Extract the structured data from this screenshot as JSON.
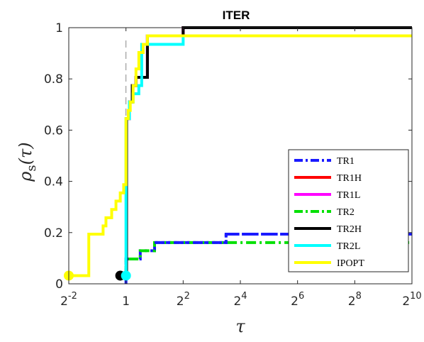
{
  "chart_data": {
    "type": "line",
    "title": "ITER",
    "xlabel": "τ",
    "ylabel": "ρs(τ)",
    "xscale": "log2",
    "xlim_log2": [
      -2,
      10
    ],
    "ylim": [
      0,
      1
    ],
    "x_tick_labels": [
      {
        "base": "2",
        "exp": "-2",
        "log2": -2
      },
      {
        "base": "1",
        "exp": "",
        "log2": 0
      },
      {
        "base": "2",
        "exp": "2",
        "log2": 2
      },
      {
        "base": "2",
        "exp": "4",
        "log2": 4
      },
      {
        "base": "2",
        "exp": "6",
        "log2": 6
      },
      {
        "base": "2",
        "exp": "8",
        "log2": 8
      },
      {
        "base": "2",
        "exp": "10",
        "log2": 10
      }
    ],
    "y_ticks": [
      0,
      0.2,
      0.4,
      0.6,
      0.8,
      1
    ],
    "y_tick_labels": [
      "0",
      "0.2",
      "0.4",
      "0.6",
      "0.8",
      "1"
    ],
    "reference_line_log2": 0,
    "grid": false,
    "legend_position": "lower-right",
    "series": [
      {
        "name": "TR1",
        "color": "#1a1aff",
        "dash": "dashdot",
        "steps": [
          [
            0,
            0.032
          ],
          [
            0.02,
            0.645
          ],
          [
            0.1,
            0.71
          ],
          [
            0.2,
            0.77
          ],
          [
            0.35,
            0.806
          ],
          [
            0.55,
            0.806
          ],
          [
            0.75,
            0.935
          ],
          [
            1.0,
            0.935
          ],
          [
            2.2,
            0.935
          ],
          [
            2.5,
            0.935
          ],
          [
            10,
            0.935
          ]
        ],
        "low_steps": [
          [
            0,
            0
          ],
          [
            0,
            0.097
          ],
          [
            0.5,
            0.129
          ],
          [
            1.0,
            0.161
          ],
          [
            3.5,
            0.194
          ],
          [
            10,
            0.194
          ]
        ],
        "marker": null
      },
      {
        "name": "TR1H",
        "color": "#ff0000",
        "dash": "solid",
        "steps": [
          [
            0,
            0.032
          ],
          [
            0.02,
            0.645
          ],
          [
            0.12,
            0.71
          ],
          [
            0.22,
            0.774
          ],
          [
            0.35,
            0.806
          ],
          [
            0.55,
            0.806
          ],
          [
            0.75,
            0.968
          ],
          [
            2.0,
            1.0
          ],
          [
            10,
            1.0
          ]
        ],
        "marker": null
      },
      {
        "name": "TR1L",
        "color": "#ff00ff",
        "dash": "solid",
        "steps": [
          [
            0,
            0.032
          ],
          [
            0.02,
            0.645
          ],
          [
            0.12,
            0.71
          ],
          [
            0.22,
            0.774
          ],
          [
            0.35,
            0.806
          ],
          [
            0.55,
            0.806
          ],
          [
            0.75,
            0.968
          ],
          [
            2.0,
            1.0
          ],
          [
            10,
            1.0
          ]
        ],
        "marker": null
      },
      {
        "name": "TR2",
        "color": "#00e000",
        "dash": "dashdot",
        "steps": [
          [
            0,
            0.032
          ],
          [
            0,
            0.097
          ],
          [
            0.5,
            0.129
          ],
          [
            1.0,
            0.161
          ],
          [
            2.0,
            0.161
          ],
          [
            10,
            0.161
          ]
        ],
        "marker": null
      },
      {
        "name": "TR2H",
        "color": "#000000",
        "dash": "solid",
        "steps": [
          [
            -0.2,
            0.032
          ],
          [
            0.02,
            0.032
          ],
          [
            0.02,
            0.645
          ],
          [
            0.12,
            0.71
          ],
          [
            0.22,
            0.774
          ],
          [
            0.35,
            0.806
          ],
          [
            0.55,
            0.806
          ],
          [
            0.75,
            0.968
          ],
          [
            2.0,
            1.0
          ],
          [
            10,
            1.0
          ]
        ],
        "marker": -0.2
      },
      {
        "name": "TR2L",
        "color": "#00ffff",
        "dash": "solid",
        "steps": [
          [
            0,
            0.032
          ],
          [
            0,
            0.645
          ],
          [
            0.12,
            0.71
          ],
          [
            0.25,
            0.742
          ],
          [
            0.45,
            0.774
          ],
          [
            0.55,
            0.935
          ],
          [
            2.0,
            0.968
          ],
          [
            10,
            0.968
          ]
        ],
        "marker": 0
      },
      {
        "name": "IPOPT",
        "color": "#ffff00",
        "dash": "solid",
        "steps": [
          [
            -2,
            0.032
          ],
          [
            -1.3,
            0.032
          ],
          [
            -1.3,
            0.194
          ],
          [
            -0.8,
            0.194
          ],
          [
            -0.8,
            0.226
          ],
          [
            -0.7,
            0.258
          ],
          [
            -0.5,
            0.29
          ],
          [
            -0.35,
            0.323
          ],
          [
            -0.2,
            0.355
          ],
          [
            -0.08,
            0.387
          ],
          [
            0.0,
            0.645
          ],
          [
            0.08,
            0.677
          ],
          [
            0.15,
            0.71
          ],
          [
            0.25,
            0.774
          ],
          [
            0.35,
            0.839
          ],
          [
            0.45,
            0.903
          ],
          [
            0.6,
            0.935
          ],
          [
            0.75,
            0.968
          ],
          [
            10,
            0.968
          ]
        ],
        "marker": -2
      }
    ]
  }
}
